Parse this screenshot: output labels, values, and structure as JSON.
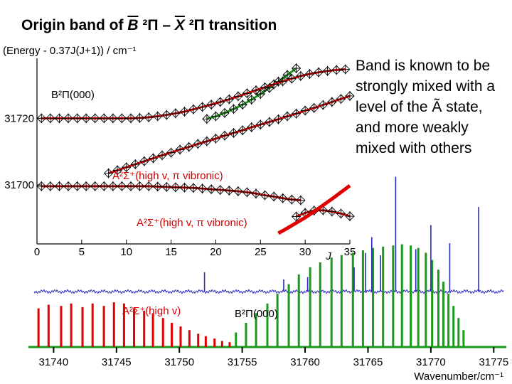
{
  "title": {
    "prefix": "Origin band of ",
    "upper_state": "B",
    "mid": " ²Π – ",
    "lower_state": "X",
    "suffix": " ²Π transition"
  },
  "note_text": "Band is known to be strongly mixed with a level of the Ã state, and more weakly mixed with others",
  "colors": {
    "red": "#e00000",
    "green": "#1a9a1a",
    "blue": "#2b2bbf",
    "black": "#000000"
  },
  "chart_data": [
    {
      "type": "scatter",
      "title": "",
      "ylabel": "(Energy - 0.37J(J+1)) / cm⁻¹",
      "xlabel": "J",
      "xlim": [
        0,
        35
      ],
      "ylim": [
        31684,
        31738
      ],
      "xticks": [
        0,
        5,
        10,
        15,
        20,
        25,
        30,
        35
      ],
      "yticks": [
        31700,
        31720
      ],
      "annotations": [
        "B²Π(000)",
        "A²Σ⁺(high v, π vibronic)",
        "A²Σ⁺(high v, π vibronic)"
      ],
      "series": [
        {
          "name": "",
          "marker": "cross-diamond",
          "color": "#1a9a1a",
          "x": [
            19,
            20,
            21,
            22,
            23,
            24,
            25,
            26,
            27,
            28,
            29
          ],
          "y": [
            31719.8,
            31720.6,
            31721.6,
            31722.8,
            31724.1,
            31725.6,
            31727.3,
            31729.1,
            31731,
            31733,
            31735
          ]
        },
        {
          "name": "",
          "marker": "cross-diamond",
          "color": "#e00000",
          "x": [
            0.5,
            1.5,
            2.5,
            3.5,
            4.5,
            5.5,
            6.5,
            7.5,
            8.5,
            9.5,
            10.5,
            11.5,
            12.5,
            13.5,
            14.5,
            15.5,
            16.5,
            17.5,
            18.5,
            19.5,
            20.5,
            21.5,
            22.5,
            23.5,
            24.5,
            25.5,
            26.5,
            27.5,
            28.5,
            29.5,
            30.5,
            31.5,
            32.5,
            33.5,
            34.5
          ],
          "y": [
            31720,
            31720,
            31720,
            31720,
            31720,
            31720,
            31720,
            31720,
            31720,
            31720,
            31720,
            31720.1,
            31720.3,
            31720.6,
            31721,
            31721.5,
            31722,
            31722.7,
            31723.4,
            31724.1,
            31724.9,
            31725.7,
            31726.6,
            31727.5,
            31728.4,
            31729.3,
            31730.2,
            31731.1,
            31731.9,
            31732.7,
            31733.3,
            31733.8,
            31734.2,
            31734.5,
            31734.7
          ]
        },
        {
          "name": "",
          "marker": "cross-diamond",
          "color": "#e00000",
          "x": [
            8,
            9,
            10,
            11,
            12,
            13,
            14,
            15,
            16,
            17,
            18,
            19,
            20,
            21,
            22,
            23,
            24,
            25,
            26,
            27,
            28,
            29,
            30,
            31,
            32,
            33,
            34,
            35
          ],
          "y": [
            31703.5,
            31704.4,
            31705.3,
            31706.2,
            31707.1,
            31708,
            31708.9,
            31709.7,
            31710.6,
            31711.4,
            31712.3,
            31713.1,
            31713.9,
            31714.8,
            31715.6,
            31716.4,
            31717.3,
            31718.1,
            31718.9,
            31719.7,
            31720.6,
            31721.4,
            31722.3,
            31723.1,
            31724,
            31724.9,
            31725.8,
            31726.7
          ]
        },
        {
          "name": "",
          "marker": "cross-diamond",
          "color": "#e00000",
          "x": [
            0.5,
            1.5,
            2.5,
            3.5,
            4.5,
            5.5,
            6.5,
            7.5,
            8.5,
            9.5,
            10.5,
            11.5,
            12.5,
            13.5,
            14.5,
            15.5,
            16.5,
            17.5,
            18.5,
            19.5,
            20.5,
            21.5,
            22.5,
            23.5,
            24.5,
            25.5,
            26.5,
            27.5,
            28.5,
            29.5
          ],
          "y": [
            31699.6,
            31699.6,
            31699.6,
            31699.6,
            31699.6,
            31699.6,
            31699.6,
            31699.6,
            31699.6,
            31699.6,
            31699.6,
            31699.6,
            31699.6,
            31699.5,
            31699.4,
            31699.3,
            31699.2,
            31699.1,
            31698.9,
            31698.7,
            31698.5,
            31698.3,
            31698.1,
            31697.8,
            31697.4,
            31696.9,
            31696.5,
            31696,
            31695.6,
            31695.4
          ]
        },
        {
          "name": "",
          "marker": "cross-diamond",
          "color": "#e00000",
          "x": [
            29,
            30,
            31,
            32,
            33,
            34,
            35
          ],
          "y": [
            31690.5,
            31691.6,
            31692.3,
            31692.4,
            31692,
            31691.4,
            31690.6
          ]
        }
      ],
      "red_segments": [
        {
          "x": [
            27,
            28,
            29,
            30,
            31,
            32,
            33,
            34,
            35
          ],
          "y": [
            31685.5,
            31687,
            31688.6,
            31690.2,
            31692,
            31693.9,
            31695.8,
            31697.8,
            31699.8
          ]
        }
      ]
    },
    {
      "type": "bar",
      "title": "",
      "xlabel": "Wavenumber/cm⁻¹",
      "xlim": [
        31738,
        31776
      ],
      "xticks": [
        31740,
        31745,
        31750,
        31755,
        31760,
        31765,
        31770,
        31775
      ],
      "annotations": [
        "A²Σ⁺(high v)",
        "B²Π(000)"
      ],
      "series": [
        {
          "name": "",
          "color": "#e00000",
          "x": [
            31738.8,
            31739.6,
            31740.6,
            31741.4,
            31742.3,
            31743.1,
            31744.0,
            31744.8,
            31745.6,
            31746.4,
            31747.2,
            31747.9,
            31748.7,
            31749.4,
            31750.1,
            31750.8,
            31751.5,
            31752.1,
            31752.8,
            31753.4,
            31754.0
          ],
          "values": [
            0.32,
            0.35,
            0.34,
            0.36,
            0.33,
            0.36,
            0.34,
            0.37,
            0.36,
            0.32,
            0.3,
            0.28,
            0.24,
            0.2,
            0.17,
            0.14,
            0.11,
            0.09,
            0.07,
            0.05,
            0.04
          ]
        },
        {
          "name": "",
          "color": "#1a9a1a",
          "x": [
            31754.5,
            31755.3,
            31756.1,
            31757.0,
            31757.8,
            31758.7,
            31759.5,
            31760.4,
            31761.2,
            31762.1,
            31762.9,
            31763.8,
            31764.6,
            31765.4,
            31766.2,
            31767.0,
            31767.7,
            31768.4,
            31769.0,
            31769.6,
            31770.1,
            31770.6,
            31771.0,
            31771.4,
            31771.8,
            31772.2,
            31772.6
          ],
          "values": [
            0.12,
            0.2,
            0.28,
            0.36,
            0.44,
            0.52,
            0.6,
            0.66,
            0.7,
            0.74,
            0.76,
            0.78,
            0.8,
            0.82,
            0.83,
            0.84,
            0.85,
            0.84,
            0.82,
            0.78,
            0.72,
            0.64,
            0.54,
            0.44,
            0.34,
            0.24,
            0.14
          ]
        },
        {
          "name": "",
          "color": "#2b2bbf",
          "x": [
            31752.0,
            31758.3,
            31760.2,
            31763.9,
            31764.8,
            31765.3,
            31766.0,
            31767.2,
            31768.8,
            31770.0,
            31771.5,
            31773.8
          ],
          "values": [
            0.16,
            0.1,
            0.12,
            0.2,
            0.32,
            0.45,
            0.3,
            0.95,
            0.35,
            0.55,
            0.4,
            0.7
          ]
        }
      ]
    }
  ]
}
